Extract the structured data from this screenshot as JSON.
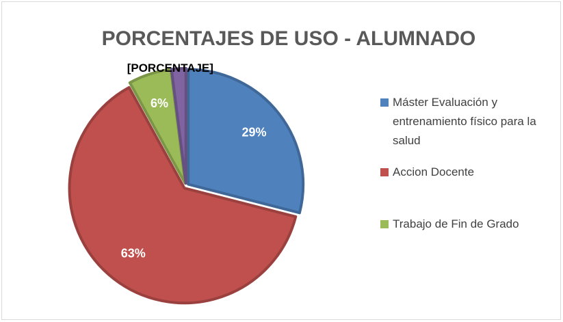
{
  "chart_data": {
    "type": "pie",
    "title": "PORCENTAJES DE USO - ALUMNADO",
    "categories": [
      "Máster Evaluación y entrenamiento físico para la salud",
      "Accion Docente",
      "Trabajo de Fin de Grado",
      null
    ],
    "values": [
      29,
      63,
      6,
      2
    ],
    "value_labels": [
      "29%",
      "63%",
      "6%",
      "[PORCENTAJE]"
    ],
    "colors": [
      "#4f81bd",
      "#c0504d",
      "#9bbb59",
      "#8064a2"
    ],
    "legend": "right"
  }
}
